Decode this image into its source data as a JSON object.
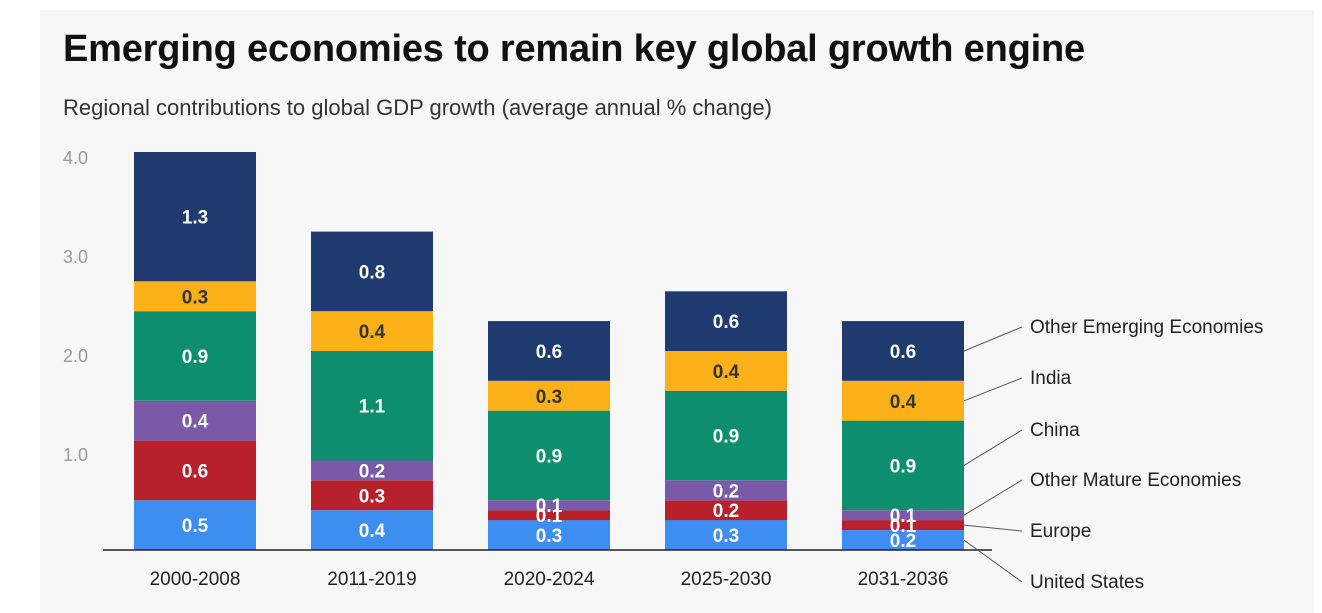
{
  "header": {
    "title": "Emerging economies to remain key global growth engine",
    "subtitle": "Regional contributions to global GDP growth (average annual % change)"
  },
  "chart_data": {
    "type": "bar",
    "stacked": true,
    "title": "Emerging economies to remain key global growth engine",
    "subtitle": "Regional contributions to global GDP growth (average annual % change)",
    "xlabel": "",
    "ylabel": "",
    "ylim": [
      0,
      4.0
    ],
    "yticks": [
      "4.0",
      "3.0",
      "2.0",
      "1.0"
    ],
    "grid": false,
    "legend_placement": "right (direct labels)",
    "categories": [
      "2000-2008",
      "2011-2019",
      "2020-2024",
      "2025-2030",
      "2031-2036"
    ],
    "series": [
      {
        "name": "United States",
        "color": "#3d8ef0",
        "values": [
          0.5,
          0.4,
          0.3,
          0.3,
          0.2
        ],
        "labels": [
          "0.5",
          "0.4",
          "0.3",
          "0.3",
          "0.2"
        ]
      },
      {
        "name": "Europe",
        "color": "#b8212b",
        "values": [
          0.6,
          0.3,
          0.1,
          0.2,
          0.1
        ],
        "labels": [
          "0.6",
          "0.3",
          "0.1",
          "0.2",
          "0.1"
        ]
      },
      {
        "name": "Other Mature Economies",
        "color": "#7a5aa8",
        "values": [
          0.4,
          0.2,
          0.1,
          0.2,
          0.1
        ],
        "labels": [
          "0.4",
          "0.2",
          "0.1",
          "0.2",
          "0.1"
        ]
      },
      {
        "name": "China",
        "color": "#0d8f6f",
        "values": [
          0.9,
          1.1,
          0.9,
          0.9,
          0.9
        ],
        "labels": [
          "0.9",
          "1.1",
          "0.9",
          "0.9",
          "0.9"
        ]
      },
      {
        "name": "India",
        "color": "#fbb117",
        "values": [
          0.3,
          0.4,
          0.3,
          0.4,
          0.4
        ],
        "labels": [
          "0.3",
          "0.4",
          "0.3",
          "0.4",
          "0.4"
        ]
      },
      {
        "name": "Other Emerging Economies",
        "color": "#1f3a6e",
        "values": [
          1.3,
          0.8,
          0.6,
          0.6,
          0.6
        ],
        "labels": [
          "1.3",
          "0.8",
          "0.6",
          "0.6",
          "0.6"
        ]
      }
    ],
    "label_text_colors": {
      "United States": "#ffffff",
      "Europe": "#ffffff",
      "Other Mature Economies": "#ffffff",
      "China": "#ffffff",
      "India": "#333333",
      "Other Emerging Economies": "#ffffff"
    }
  }
}
